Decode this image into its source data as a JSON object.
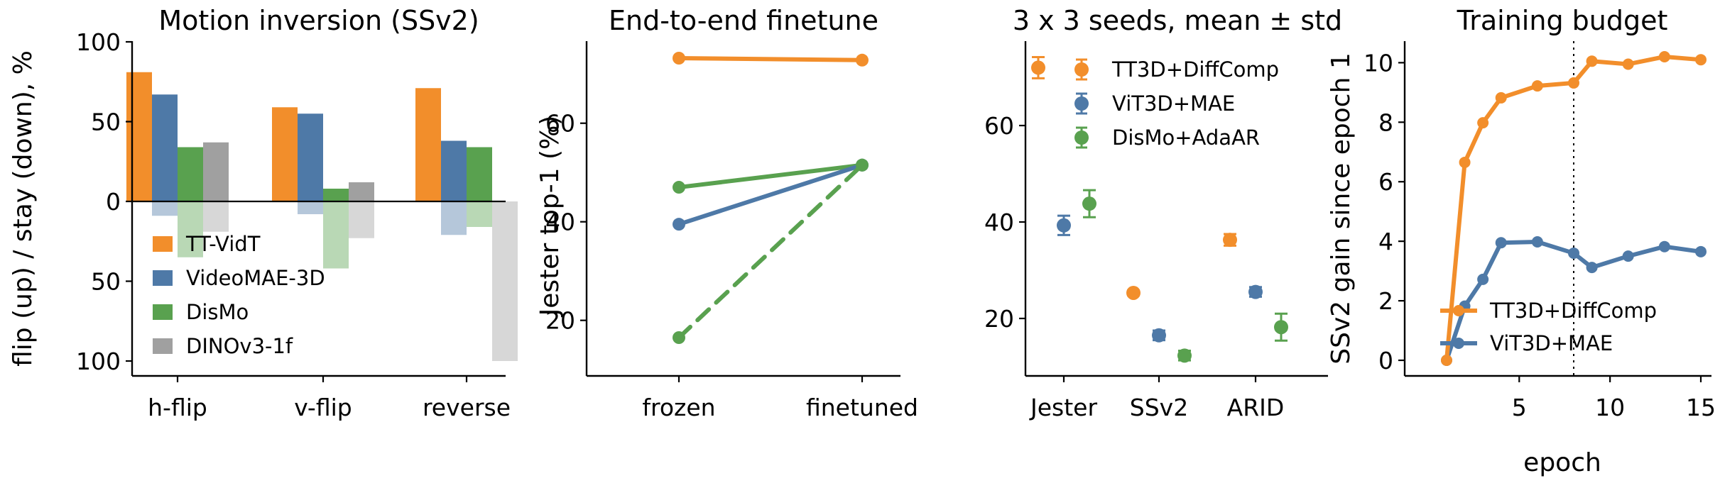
{
  "colors": {
    "orange": "#f28e2b",
    "blue": "#4e79a7",
    "green": "#59a14f",
    "gray": "#a0a0a0"
  },
  "chart_data": [
    {
      "type": "bar",
      "title": "Motion inversion (SSv2)",
      "xlabel": "",
      "ylabel": "flip (up) / stay (down), %",
      "ylim": [
        -100,
        100
      ],
      "yticks": [
        100,
        50,
        0,
        50,
        100
      ],
      "categories": [
        "h-flip",
        "v-flip",
        "reverse"
      ],
      "legend_position": "lower-left",
      "series": [
        {
          "name": "TT-VidT",
          "color": "orange",
          "up": [
            81,
            59,
            71
          ],
          "down": [
            0,
            0,
            0
          ]
        },
        {
          "name": "VideoMAE-3D",
          "color": "blue",
          "up": [
            67,
            55,
            38
          ],
          "down": [
            9,
            8,
            21
          ]
        },
        {
          "name": "DisMo",
          "color": "green",
          "up": [
            34,
            8,
            34
          ],
          "down": [
            35,
            42,
            16
          ]
        },
        {
          "name": "DINOv3-1f",
          "color": "gray",
          "up": [
            37,
            12,
            0
          ],
          "down": [
            19,
            23,
            100
          ]
        }
      ]
    },
    {
      "type": "line",
      "title": "End-to-end finetune",
      "xlabel": "",
      "ylabel": "Jester top-1 (%)",
      "categories": [
        "frozen",
        "finetuned"
      ],
      "ylim": [
        13,
        75
      ],
      "yticks": [
        20,
        40,
        60
      ],
      "series": [
        {
          "color": "orange",
          "dash": false,
          "values": [
            73.2,
            72.8
          ]
        },
        {
          "color": "green",
          "dash": false,
          "values": [
            47,
            51.5
          ]
        },
        {
          "color": "blue",
          "dash": false,
          "values": [
            39.5,
            51.5
          ]
        },
        {
          "color": "green",
          "dash": true,
          "values": [
            16.5,
            51.5
          ]
        }
      ]
    },
    {
      "type": "scatter",
      "title": "3 x 3 seeds, mean ± std",
      "xlabel": "",
      "ylabel": "",
      "categories": [
        "Jester",
        "SSv2",
        "ARID"
      ],
      "ylim": [
        9,
        78
      ],
      "yticks": [
        20,
        40,
        60
      ],
      "legend_position": "top-right",
      "series": [
        {
          "name": "TT3D+DiffComp",
          "color": "orange",
          "mean": [
            72,
            25.3,
            36.3
          ],
          "std": [
            2.2,
            0.5,
            1.2
          ]
        },
        {
          "name": "ViT3D+MAE",
          "color": "blue",
          "mean": [
            39.3,
            16.5,
            25.5
          ],
          "std": [
            2.0,
            1.0,
            1.0
          ]
        },
        {
          "name": "DisMo+AdaAR",
          "color": "green",
          "mean": [
            43.8,
            12.3,
            18.2
          ],
          "std": [
            2.8,
            1.0,
            2.8
          ]
        }
      ]
    },
    {
      "type": "line",
      "title": "Training budget",
      "xlabel": "epoch",
      "ylabel": "SSv2 gain since epoch 1",
      "xlim": [
        0,
        15.5
      ],
      "ylim": [
        -0.6,
        10.7
      ],
      "xticks": [
        5,
        10,
        15
      ],
      "yticks": [
        0,
        2,
        4,
        6,
        8,
        10
      ],
      "vline": 8,
      "legend_position": "lower-right",
      "series": [
        {
          "name": "TT3D+DiffComp",
          "color": "orange",
          "x": [
            1,
            2,
            3,
            4,
            6,
            8,
            9,
            11,
            13,
            15
          ],
          "y": [
            0,
            6.65,
            7.98,
            8.82,
            9.22,
            9.32,
            10.05,
            9.95,
            10.2,
            10.1
          ]
        },
        {
          "name": "ViT3D+MAE",
          "color": "blue",
          "x": [
            1,
            2,
            3,
            4,
            6,
            8,
            9,
            11,
            13,
            15
          ],
          "y": [
            0,
            1.82,
            2.72,
            3.95,
            3.98,
            3.6,
            3.12,
            3.5,
            3.82,
            3.65
          ]
        }
      ]
    }
  ]
}
